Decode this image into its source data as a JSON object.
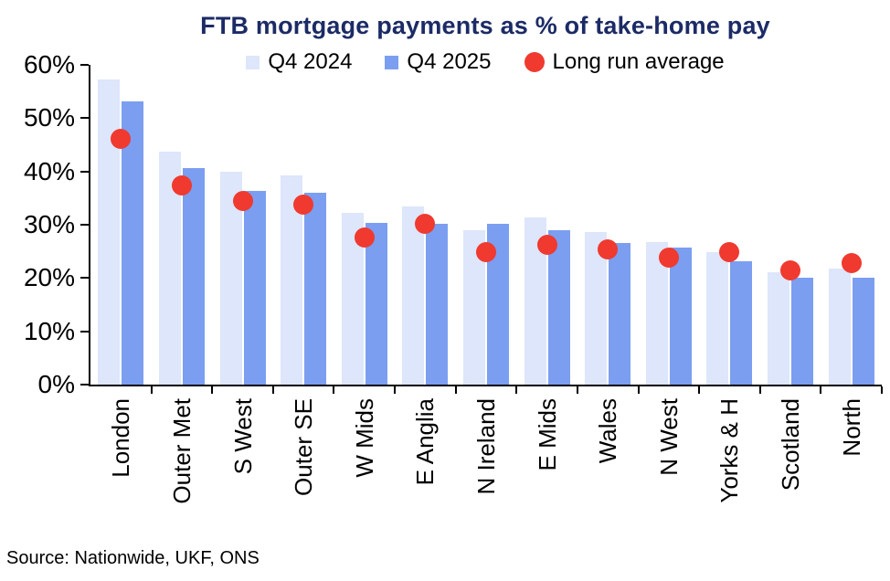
{
  "chart_data": {
    "type": "bar",
    "title": "FTB mortgage payments as % of take-home pay",
    "categories": [
      "London",
      "Outer Met",
      "S West",
      "Outer SE",
      "W Mids",
      "E Anglia",
      "N Ireland",
      "E Mids",
      "Wales",
      "N West",
      "Yorks & H",
      "Scotland",
      "North"
    ],
    "series": [
      {
        "name": "Q4 2024",
        "type": "bar",
        "color": "#dde6fa",
        "values": [
          57.2,
          43.8,
          39.9,
          39.2,
          32.2,
          33.4,
          29.0,
          31.4,
          28.6,
          26.7,
          24.9,
          21.1,
          21.7
        ]
      },
      {
        "name": "Q4 2025",
        "type": "bar",
        "color": "#7b9ef0",
        "values": [
          53.2,
          40.7,
          36.4,
          36.0,
          30.3,
          30.1,
          30.1,
          29.0,
          26.5,
          25.7,
          23.2,
          20.0,
          20.1
        ]
      },
      {
        "name": "Long run average",
        "type": "scatter",
        "color": "#f0392f",
        "values": [
          46.2,
          37.4,
          34.4,
          33.8,
          27.6,
          30.2,
          24.8,
          26.2,
          25.4,
          23.9,
          24.8,
          21.4,
          22.8
        ]
      }
    ],
    "xlabel": "",
    "ylabel": "",
    "ylim": [
      0,
      60
    ],
    "ytick_step": 10,
    "ytick_labels": [
      "0%",
      "10%",
      "20%",
      "30%",
      "40%",
      "50%",
      "60%"
    ],
    "grid": false,
    "legend_position": "top"
  },
  "source_note": "Source: Nationwide, UKF, ONS",
  "colors": {
    "title": "#1c2b66",
    "axis": "#000000",
    "text": "#000000",
    "background": "#ffffff",
    "q4_2024_bar": "#dde6fa",
    "q4_2025_bar": "#7b9ef0",
    "long_run_average_dot": "#f0392f"
  }
}
